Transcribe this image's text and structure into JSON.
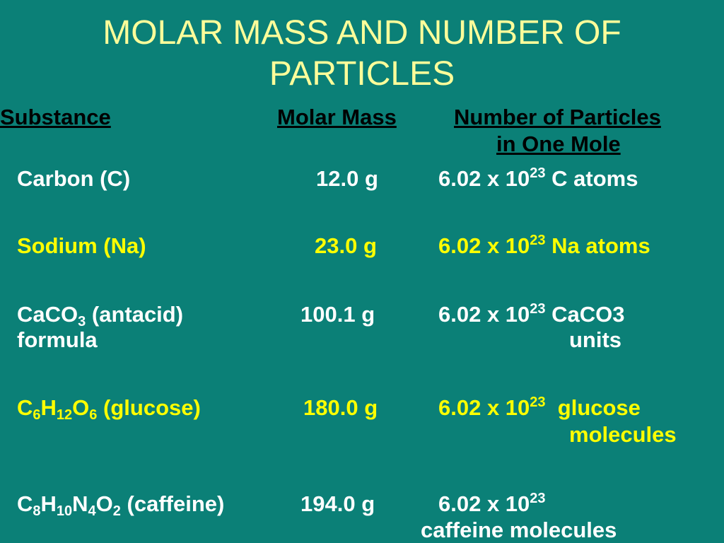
{
  "title": {
    "line1": "MOLAR MASS AND NUMBER OF",
    "line2": "PARTICLES"
  },
  "headers": {
    "substance": "Substance",
    "molar_mass": "Molar Mass",
    "particles_line1": "Number of Particles",
    "particles_line2": "in One Mole"
  },
  "colors": {
    "background": "#0b8077",
    "title": "#fdfd9a",
    "highlight": "#ffff00",
    "text": "#ffffff",
    "header": "#000000"
  },
  "rows": [
    {
      "substance": "Carbon (C)",
      "mass": "12.0 g",
      "particles_base": "6.02 x 10",
      "exponent": "23",
      "particles_tail": " C atoms"
    },
    {
      "substance": "Sodium (Na)",
      "mass": "23.0 g",
      "particles_base": "6.02 x 10",
      "exponent": "23",
      "particles_tail": " Na atoms"
    },
    {
      "substance_parts": [
        "CaCO",
        "3",
        " (antacid)"
      ],
      "substance_line2": "formula",
      "mass": "100.1 g",
      "particles_base": "6.02 x 10",
      "exponent": "23",
      "particles_tail": " CaCO3",
      "particles_line2": "units"
    },
    {
      "substance_parts": [
        "C",
        "6",
        "H",
        "12",
        "O",
        "6",
        " (glucose)"
      ],
      "mass": "180.0 g",
      "particles_base": "6.02 x 10",
      "exponent": "23",
      "particles_tail": "  glucose",
      "particles_line2": "molecules"
    },
    {
      "substance_parts": [
        "C",
        "8",
        "H",
        "10",
        "N",
        "4",
        "O",
        "2",
        " (caffeine)"
      ],
      "mass": "194.0 g",
      "particles_base": "6.02 x 10",
      "exponent": "23",
      "particles_line2": "caffeine molecules"
    }
  ]
}
